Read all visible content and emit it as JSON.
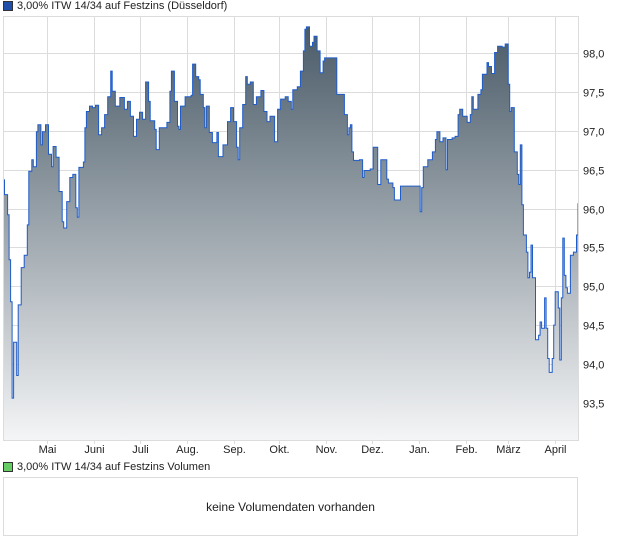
{
  "legend": {
    "price_label": "3,00% ITW 14/34 auf Festzins (Düsseldorf)",
    "price_color": "#1f4fa8",
    "volume_label": "3,00% ITW 14/34 auf Festzins Volumen",
    "volume_color": "#66cc66"
  },
  "volume_panel": {
    "message": "keine Volumendaten vorhanden"
  },
  "chart_data": {
    "type": "area",
    "title": "",
    "xlabel": "",
    "ylabel": "",
    "grid": true,
    "legend_position": "top-left",
    "line_color": "#1f5cc8",
    "fill_gradient": [
      "#4a5b68",
      "#f4f5f6"
    ],
    "xlim": [
      "2024-04-02",
      "2025-04-16"
    ],
    "ylim": [
      93.02,
      98.48
    ],
    "y_ticks": [
      {
        "value": 93.5,
        "label": "93,5"
      },
      {
        "value": 94.0,
        "label": "94,0"
      },
      {
        "value": 94.5,
        "label": "94,5"
      },
      {
        "value": 95.0,
        "label": "95,0"
      },
      {
        "value": 95.5,
        "label": "95,5"
      },
      {
        "value": 96.0,
        "label": "96,0"
      },
      {
        "value": 96.5,
        "label": "96,5"
      },
      {
        "value": 97.0,
        "label": "97,0"
      },
      {
        "value": 97.5,
        "label": "97,5"
      },
      {
        "value": 98.0,
        "label": "98,0"
      }
    ],
    "x_ticks": [
      {
        "date": "2024-05-01",
        "label": "Mai"
      },
      {
        "date": "2024-06-01",
        "label": "Juni"
      },
      {
        "date": "2024-07-01",
        "label": "Juli"
      },
      {
        "date": "2024-08-01",
        "label": "Aug."
      },
      {
        "date": "2024-09-01",
        "label": "Sep."
      },
      {
        "date": "2024-10-01",
        "label": "Okt."
      },
      {
        "date": "2024-11-01",
        "label": "Nov."
      },
      {
        "date": "2024-12-01",
        "label": "Dez."
      },
      {
        "date": "2025-01-01",
        "label": "Jan."
      },
      {
        "date": "2025-02-01",
        "label": "Feb."
      },
      {
        "date": "2025-03-01",
        "label": "März"
      },
      {
        "date": "2025-04-01",
        "label": "April"
      }
    ],
    "series": [
      {
        "points": [
          [
            "2024-04-02",
            96.37
          ],
          [
            "2024-04-03",
            96.18
          ],
          [
            "2024-04-05",
            95.92
          ],
          [
            "2024-04-06",
            95.34
          ],
          [
            "2024-04-07",
            94.8
          ],
          [
            "2024-04-08",
            93.56
          ],
          [
            "2024-04-09",
            94.28
          ],
          [
            "2024-04-11",
            93.85
          ],
          [
            "2024-04-12",
            94.76
          ],
          [
            "2024-04-14",
            95.24
          ],
          [
            "2024-04-16",
            95.4
          ],
          [
            "2024-04-18",
            95.79
          ],
          [
            "2024-04-19",
            96.48
          ],
          [
            "2024-04-21",
            96.63
          ],
          [
            "2024-04-22",
            96.54
          ],
          [
            "2024-04-24",
            96.99
          ],
          [
            "2024-04-25",
            97.08
          ],
          [
            "2024-04-27",
            96.82
          ],
          [
            "2024-04-28",
            96.99
          ],
          [
            "2024-04-30",
            97.08
          ],
          [
            "2024-05-02",
            96.7
          ],
          [
            "2024-05-04",
            96.54
          ],
          [
            "2024-05-05",
            96.8
          ],
          [
            "2024-05-07",
            96.66
          ],
          [
            "2024-05-09",
            96.22
          ],
          [
            "2024-05-11",
            95.83
          ],
          [
            "2024-05-12",
            95.75
          ],
          [
            "2024-05-14",
            96.09
          ],
          [
            "2024-05-16",
            96.4
          ],
          [
            "2024-05-18",
            96.44
          ],
          [
            "2024-05-20",
            96.01
          ],
          [
            "2024-05-21",
            95.89
          ],
          [
            "2024-05-22",
            96.53
          ],
          [
            "2024-05-25",
            96.6
          ],
          [
            "2024-05-26",
            97.04
          ],
          [
            "2024-05-27",
            97.25
          ],
          [
            "2024-05-29",
            97.32
          ],
          [
            "2024-05-31",
            97.3
          ],
          [
            "2024-06-02",
            97.33
          ],
          [
            "2024-06-04",
            96.95
          ],
          [
            "2024-06-06",
            97.04
          ],
          [
            "2024-06-08",
            97.21
          ],
          [
            "2024-06-10",
            97.44
          ],
          [
            "2024-06-12",
            97.77
          ],
          [
            "2024-06-13",
            97.51
          ],
          [
            "2024-06-15",
            97.32
          ],
          [
            "2024-06-18",
            97.43
          ],
          [
            "2024-06-19",
            97.43
          ],
          [
            "2024-06-21",
            97.28
          ],
          [
            "2024-06-23",
            97.38
          ],
          [
            "2024-06-25",
            97.19
          ],
          [
            "2024-06-27",
            96.93
          ],
          [
            "2024-06-29",
            97.15
          ],
          [
            "2024-07-01",
            97.24
          ],
          [
            "2024-07-03",
            97.15
          ],
          [
            "2024-07-05",
            97.63
          ],
          [
            "2024-07-07",
            97.38
          ],
          [
            "2024-07-08",
            97.13
          ],
          [
            "2024-07-11",
            97.02
          ],
          [
            "2024-07-12",
            96.76
          ],
          [
            "2024-07-14",
            97.04
          ],
          [
            "2024-07-16",
            97.04
          ],
          [
            "2024-07-19",
            97.11
          ],
          [
            "2024-07-21",
            97.51
          ],
          [
            "2024-07-22",
            97.77
          ],
          [
            "2024-07-24",
            97.38
          ],
          [
            "2024-07-26",
            97.06
          ],
          [
            "2024-07-27",
            97.02
          ],
          [
            "2024-07-28",
            97.32
          ],
          [
            "2024-07-31",
            97.44
          ],
          [
            "2024-08-04",
            97.46
          ],
          [
            "2024-08-05",
            97.86
          ],
          [
            "2024-08-07",
            97.7
          ],
          [
            "2024-08-09",
            97.66
          ],
          [
            "2024-08-10",
            97.47
          ],
          [
            "2024-08-12",
            97.3
          ],
          [
            "2024-08-13",
            97.04
          ],
          [
            "2024-08-14",
            97.32
          ],
          [
            "2024-08-16",
            96.98
          ],
          [
            "2024-08-18",
            96.85
          ],
          [
            "2024-08-21",
            96.98
          ],
          [
            "2024-08-22",
            96.67
          ],
          [
            "2024-08-25",
            96.82
          ],
          [
            "2024-08-28",
            97.12
          ],
          [
            "2024-08-30",
            97.3
          ],
          [
            "2024-09-01",
            97.12
          ],
          [
            "2024-09-03",
            96.79
          ],
          [
            "2024-09-04",
            96.63
          ],
          [
            "2024-09-05",
            97.04
          ],
          [
            "2024-09-07",
            97.34
          ],
          [
            "2024-09-09",
            97.7
          ],
          [
            "2024-09-10",
            97.6
          ],
          [
            "2024-09-12",
            97.63
          ],
          [
            "2024-09-14",
            97.34
          ],
          [
            "2024-09-16",
            97.44
          ],
          [
            "2024-09-19",
            97.52
          ],
          [
            "2024-09-21",
            97.25
          ],
          [
            "2024-09-23",
            97.12
          ],
          [
            "2024-09-25",
            97.19
          ],
          [
            "2024-09-28",
            96.86
          ],
          [
            "2024-09-30",
            97.28
          ],
          [
            "2024-10-02",
            97.41
          ],
          [
            "2024-10-05",
            97.44
          ],
          [
            "2024-10-07",
            97.38
          ],
          [
            "2024-10-09",
            97.28
          ],
          [
            "2024-10-10",
            97.53
          ],
          [
            "2024-10-13",
            97.57
          ],
          [
            "2024-10-15",
            97.77
          ],
          [
            "2024-10-17",
            98.03
          ],
          [
            "2024-10-18",
            98.31
          ],
          [
            "2024-10-19",
            98.34
          ],
          [
            "2024-10-21",
            98.09
          ],
          [
            "2024-10-23",
            98.14
          ],
          [
            "2024-10-24",
            98.22
          ],
          [
            "2024-10-26",
            98.03
          ],
          [
            "2024-10-28",
            97.75
          ],
          [
            "2024-10-30",
            97.9
          ],
          [
            "2024-10-31",
            97.94
          ],
          [
            "2024-11-07",
            97.94
          ],
          [
            "2024-11-08",
            97.47
          ],
          [
            "2024-11-12",
            97.47
          ],
          [
            "2024-11-13",
            97.21
          ],
          [
            "2024-11-15",
            96.95
          ],
          [
            "2024-11-16",
            97.04
          ],
          [
            "2024-11-17",
            97.08
          ],
          [
            "2024-11-18",
            96.73
          ],
          [
            "2024-11-19",
            96.62
          ],
          [
            "2024-11-23",
            96.63
          ],
          [
            "2024-11-25",
            96.4
          ],
          [
            "2024-11-26",
            96.49
          ],
          [
            "2024-11-30",
            96.51
          ],
          [
            "2024-12-02",
            96.79
          ],
          [
            "2024-12-04",
            96.79
          ],
          [
            "2024-12-05",
            96.31
          ],
          [
            "2024-12-07",
            96.63
          ],
          [
            "2024-12-10",
            96.63
          ],
          [
            "2024-12-11",
            96.38
          ],
          [
            "2024-12-12",
            96.33
          ],
          [
            "2024-12-15",
            96.27
          ],
          [
            "2024-12-16",
            96.11
          ],
          [
            "2024-12-18",
            96.11
          ],
          [
            "2024-12-20",
            96.29
          ],
          [
            "2025-01-01",
            96.29
          ],
          [
            "2025-01-02",
            95.96
          ],
          [
            "2025-01-03",
            96.27
          ],
          [
            "2025-01-04",
            96.54
          ],
          [
            "2025-01-07",
            96.63
          ],
          [
            "2025-01-10",
            96.73
          ],
          [
            "2025-01-12",
            96.89
          ],
          [
            "2025-01-13",
            96.99
          ],
          [
            "2025-01-15",
            96.86
          ],
          [
            "2025-01-17",
            96.91
          ],
          [
            "2025-01-19",
            96.5
          ],
          [
            "2025-01-20",
            96.89
          ],
          [
            "2025-01-23",
            96.91
          ],
          [
            "2025-01-25",
            96.93
          ],
          [
            "2025-01-27",
            97.21
          ],
          [
            "2025-01-28",
            97.28
          ],
          [
            "2025-01-30",
            97.19
          ],
          [
            "2025-02-02",
            97.11
          ],
          [
            "2025-02-04",
            97.21
          ],
          [
            "2025-02-05",
            97.44
          ],
          [
            "2025-02-06",
            97.28
          ],
          [
            "2025-02-09",
            97.47
          ],
          [
            "2025-02-11",
            97.53
          ],
          [
            "2025-02-12",
            97.73
          ],
          [
            "2025-02-15",
            97.88
          ],
          [
            "2025-02-16",
            97.83
          ],
          [
            "2025-02-18",
            97.74
          ],
          [
            "2025-02-20",
            98.01
          ],
          [
            "2025-02-22",
            98.09
          ],
          [
            "2025-02-25",
            98.08
          ],
          [
            "2025-02-27",
            98.12
          ],
          [
            "2025-03-01",
            97.6
          ],
          [
            "2025-03-02",
            97.25
          ],
          [
            "2025-03-03",
            97.3
          ],
          [
            "2025-03-05",
            96.73
          ],
          [
            "2025-03-07",
            96.44
          ],
          [
            "2025-03-08",
            96.31
          ],
          [
            "2025-03-09",
            96.82
          ],
          [
            "2025-03-10",
            96.05
          ],
          [
            "2025-03-11",
            95.66
          ],
          [
            "2025-03-13",
            95.44
          ],
          [
            "2025-03-14",
            95.11
          ],
          [
            "2025-03-15",
            95.18
          ],
          [
            "2025-03-16",
            95.53
          ],
          [
            "2025-03-17",
            95.11
          ],
          [
            "2025-03-19",
            94.31
          ],
          [
            "2025-03-21",
            94.37
          ],
          [
            "2025-03-22",
            94.54
          ],
          [
            "2025-03-23",
            94.46
          ],
          [
            "2025-03-25",
            94.85
          ],
          [
            "2025-03-26",
            94.46
          ],
          [
            "2025-03-27",
            94.07
          ],
          [
            "2025-03-28",
            93.89
          ],
          [
            "2025-03-30",
            94.07
          ],
          [
            "2025-03-31",
            94.5
          ],
          [
            "2025-04-01",
            94.93
          ],
          [
            "2025-04-03",
            94.72
          ],
          [
            "2025-04-04",
            94.05
          ],
          [
            "2025-04-05",
            94.85
          ],
          [
            "2025-04-06",
            95.62
          ],
          [
            "2025-04-07",
            95.14
          ],
          [
            "2025-04-08",
            94.98
          ],
          [
            "2025-04-09",
            94.91
          ],
          [
            "2025-04-11",
            95.4
          ],
          [
            "2025-04-13",
            95.44
          ],
          [
            "2025-04-15",
            95.66
          ],
          [
            "2025-04-16",
            96.07
          ]
        ]
      }
    ]
  }
}
